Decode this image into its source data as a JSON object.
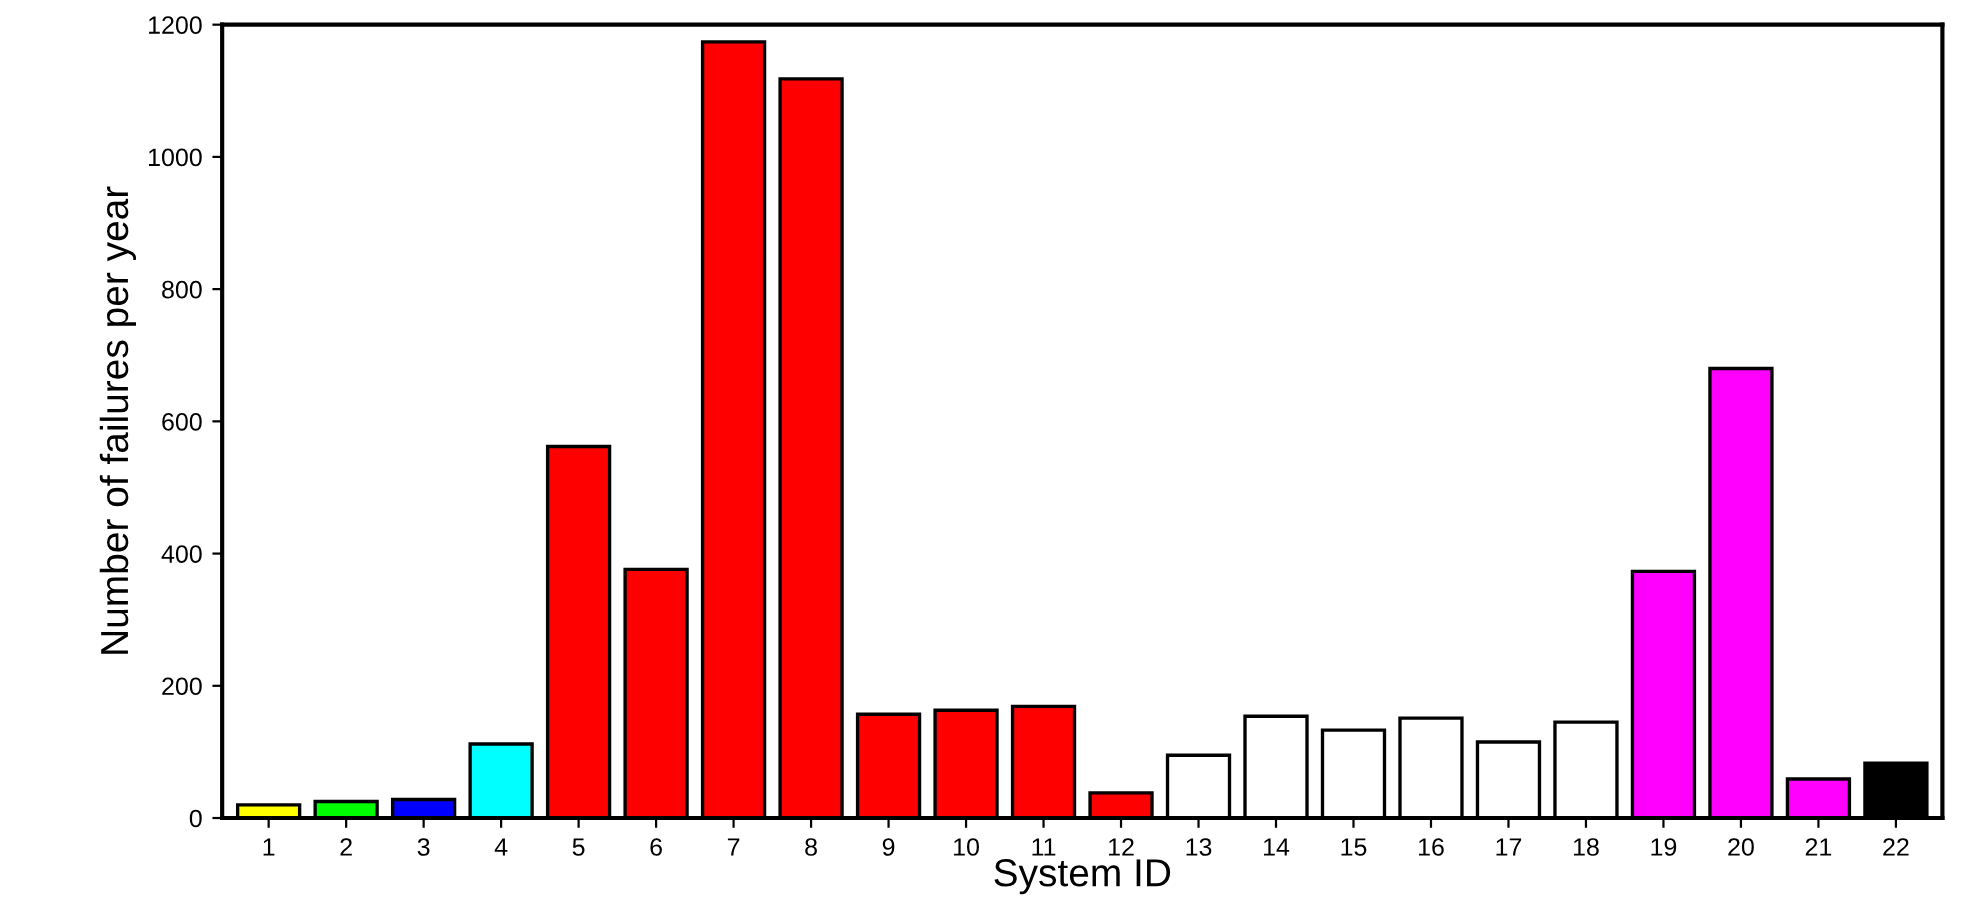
{
  "chart_data": {
    "type": "bar",
    "xlabel": "System ID",
    "ylabel": "Number of failures per year",
    "categories": [
      "1",
      "2",
      "3",
      "4",
      "5",
      "6",
      "7",
      "8",
      "9",
      "10",
      "11",
      "12",
      "13",
      "14",
      "15",
      "16",
      "17",
      "18",
      "19",
      "20",
      "21",
      "22"
    ],
    "values": [
      20,
      25,
      28,
      112,
      562,
      376,
      1174,
      1118,
      157,
      163,
      169,
      38,
      95,
      154,
      133,
      151,
      115,
      145,
      373,
      680,
      59,
      83
    ],
    "colors": [
      "#ffff00",
      "#00ff00",
      "#0000ff",
      "#00ffff",
      "#ff0000",
      "#ff0000",
      "#ff0000",
      "#ff0000",
      "#ff0000",
      "#ff0000",
      "#ff0000",
      "#ff0000",
      "#ffffff",
      "#ffffff",
      "#ffffff",
      "#ffffff",
      "#ffffff",
      "#ffffff",
      "#ff00ff",
      "#ff00ff",
      "#ff00ff",
      "#000000"
    ],
    "ylim": [
      0,
      1200
    ],
    "yticks": [
      0,
      200,
      400,
      600,
      800,
      1000,
      1200
    ],
    "grid": false,
    "legend": false
  }
}
